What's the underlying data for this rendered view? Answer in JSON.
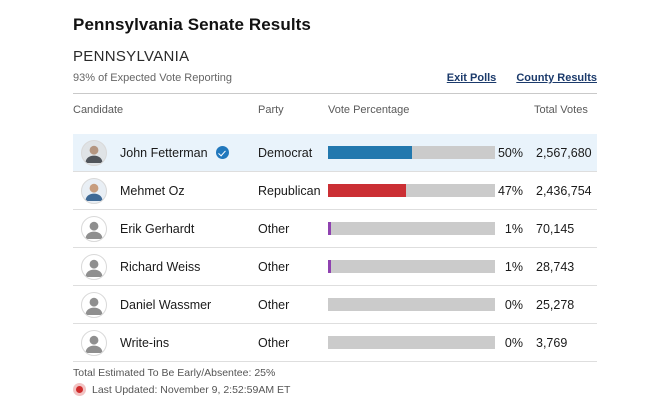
{
  "page": {
    "title": "Pennsylvania Senate Results",
    "state_label": "PENNSYLVANIA",
    "reporting_status": "93% of Expected Vote Reporting",
    "links": {
      "exit_polls": "Exit Polls",
      "county_results": "County Results"
    }
  },
  "table": {
    "headers": {
      "candidate": "Candidate",
      "party": "Party",
      "vote_percentage": "Vote Percentage",
      "total_votes": "Total Votes"
    },
    "rows": [
      {
        "name": "John Fetterman",
        "party": "Democrat",
        "percent": "50%",
        "percent_value": 50,
        "total_votes": "2,567,680",
        "winner": true,
        "highlighted": true,
        "bar_color": "#2278ae",
        "avatar_style": "fetterman"
      },
      {
        "name": "Mehmet Oz",
        "party": "Republican",
        "percent": "47%",
        "percent_value": 47,
        "total_votes": "2,436,754",
        "winner": false,
        "highlighted": false,
        "bar_color": "#cb2f34",
        "avatar_style": "oz"
      },
      {
        "name": "Erik Gerhardt",
        "party": "Other",
        "percent": "1%",
        "percent_value": 1,
        "total_votes": "70,145",
        "winner": false,
        "highlighted": false,
        "bar_color": "#8f42b0",
        "avatar_style": "generic"
      },
      {
        "name": "Richard Weiss",
        "party": "Other",
        "percent": "1%",
        "percent_value": 1,
        "total_votes": "28,743",
        "winner": false,
        "highlighted": false,
        "bar_color": "#8f42b0",
        "avatar_style": "generic"
      },
      {
        "name": "Daniel Wassmer",
        "party": "Other",
        "percent": "0%",
        "percent_value": 0,
        "total_votes": "25,278",
        "winner": false,
        "highlighted": false,
        "bar_color": null,
        "avatar_style": "generic"
      },
      {
        "name": "Write-ins",
        "party": "Other",
        "percent": "0%",
        "percent_value": 0,
        "total_votes": "3,769",
        "winner": false,
        "highlighted": false,
        "bar_color": null,
        "avatar_style": "generic"
      }
    ]
  },
  "footer": {
    "absentee_note": "Total Estimated To Be Early/Absentee: 25%",
    "last_updated": "Last Updated: November 9, 2:52:59AM ET"
  },
  "colors": {
    "democrat_bar": "#2278ae",
    "republican_bar": "#cb2f34",
    "other_bar": "#8f42b0",
    "bar_track": "#cbcbcb",
    "highlight_row_bg": "#e9f3fb",
    "link_navy": "#1b3a6b",
    "winner_badge": "#2178bd",
    "live_dot": "#d02c2c"
  },
  "chart_data": {
    "type": "bar",
    "orientation": "horizontal",
    "title": "Pennsylvania Senate Results",
    "categories": [
      "John Fetterman",
      "Mehmet Oz",
      "Erik Gerhardt",
      "Richard Weiss",
      "Daniel Wassmer",
      "Write-ins"
    ],
    "series": [
      {
        "name": "Vote Percentage",
        "values": [
          50,
          47,
          1,
          1,
          0,
          0
        ]
      },
      {
        "name": "Total Votes",
        "values": [
          2567680,
          2436754,
          70145,
          28743,
          25278,
          3769
        ]
      }
    ],
    "xlabel": "Vote Percentage",
    "xlim": [
      0,
      100
    ],
    "grid": false,
    "legend_position": "none"
  }
}
